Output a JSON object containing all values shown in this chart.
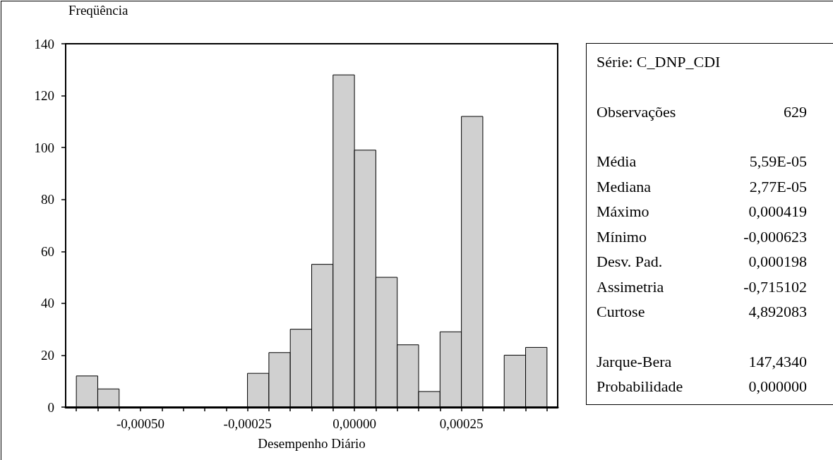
{
  "chart_data": {
    "type": "histogram",
    "xlabel": "Desempenho Diário",
    "ylabel": "Freqüência",
    "bins": [
      -0.00065,
      -0.0006,
      -0.00055,
      -0.0005,
      -0.00045,
      -0.0004,
      -0.00035,
      -0.0003,
      -0.00025,
      -0.0002,
      -0.00015,
      -0.0001,
      -5e-05,
      0,
      5e-05,
      0.0001,
      0.00015,
      0.0002,
      0.00025,
      0.0003,
      0.00035,
      0.0004,
      0.00045
    ],
    "values": [
      12,
      7,
      0,
      0,
      0,
      0,
      0,
      0,
      13,
      21,
      30,
      55,
      128,
      99,
      50,
      24,
      6,
      29,
      112,
      0,
      20,
      23
    ],
    "color": "#d0d0d0",
    "xlim": [
      -0.000675,
      0.000475
    ],
    "xticks": [
      {
        "value": -0.00065,
        "label": null
      },
      {
        "value": -0.0006,
        "label": null
      },
      {
        "value": -0.00055,
        "label": null
      },
      {
        "value": -0.0005,
        "label": "-0,00050"
      },
      {
        "value": -0.00045,
        "label": null
      },
      {
        "value": -0.0004,
        "label": null
      },
      {
        "value": -0.00035,
        "label": null
      },
      {
        "value": -0.0003,
        "label": null
      },
      {
        "value": -0.00025,
        "label": "-0,00025"
      },
      {
        "value": -0.0002,
        "label": null
      },
      {
        "value": -0.00015,
        "label": null
      },
      {
        "value": -0.0001,
        "label": null
      },
      {
        "value": -5e-05,
        "label": null
      },
      {
        "value": 0,
        "label": "0,00000"
      },
      {
        "value": 5e-05,
        "label": null
      },
      {
        "value": 0.0001,
        "label": null
      },
      {
        "value": 0.00015,
        "label": null
      },
      {
        "value": 0.0002,
        "label": null
      },
      {
        "value": 0.00025,
        "label": "0,00025"
      },
      {
        "value": 0.0003,
        "label": null
      },
      {
        "value": 0.00035,
        "label": null
      },
      {
        "value": 0.0004,
        "label": null
      },
      {
        "value": 0.00045,
        "label": null
      }
    ],
    "ylim": [
      0,
      140
    ],
    "yticks": [
      0,
      20,
      40,
      60,
      80,
      100,
      120,
      140
    ],
    "grid": false,
    "annotations": [
      "Série:  C_DNP_CDI",
      "Observações 629",
      "Média 5,59E-05",
      "Mediana 2,77E-05",
      "Máximo 0,000419",
      "Mínimo -0,000623",
      "Desv. Pad. 0,000198",
      "Assimetria -0,715102",
      "Curtose 4,892083",
      "Jarque-Bera 147,4340",
      "Probabilidade 0,000000"
    ]
  }
}
